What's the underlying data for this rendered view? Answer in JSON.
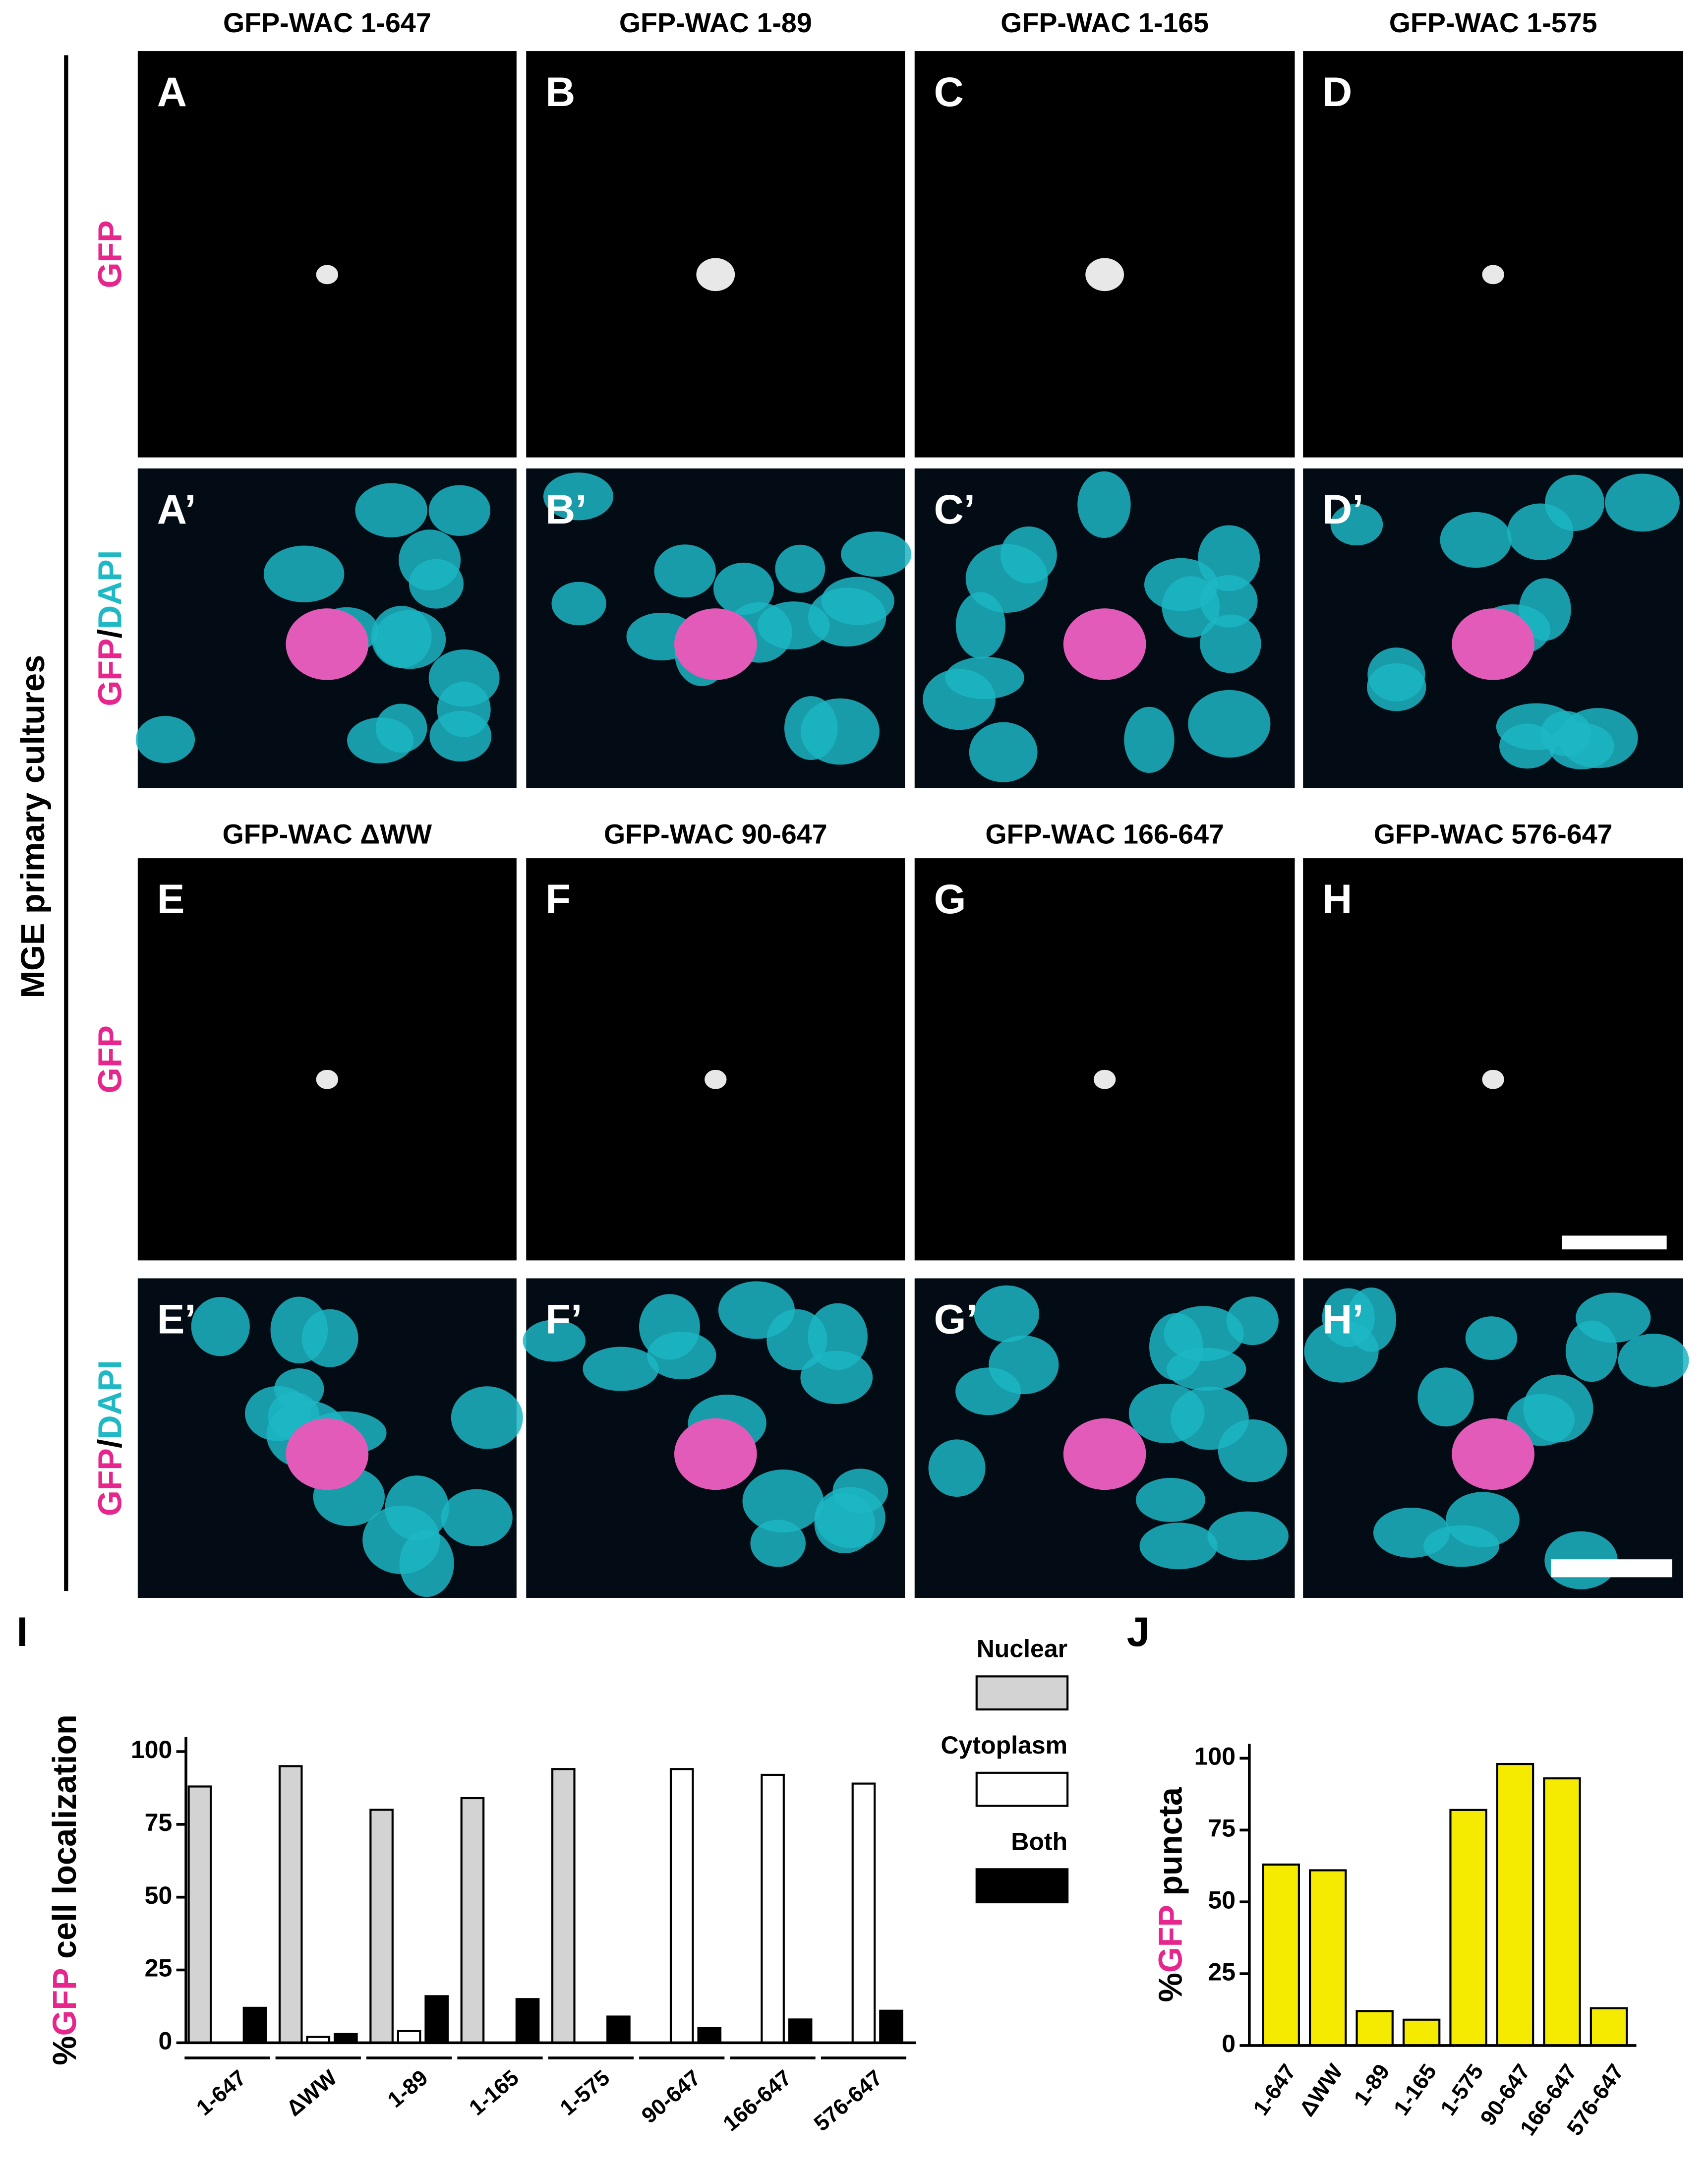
{
  "figure": {
    "side_label": "MGE primary cultures",
    "row_labels": [
      {
        "parts": [
          "GFP"
        ],
        "colors": [
          "#e6268c"
        ]
      },
      {
        "parts": [
          "GFP",
          "/",
          "DAPI"
        ],
        "colors": [
          "#e6268c",
          "#000000",
          "#1fb8c4"
        ]
      }
    ],
    "panels": [
      {
        "title": "GFP-WAC 1-647",
        "letters": [
          "A",
          "A’"
        ]
      },
      {
        "title": "GFP-WAC 1-89",
        "letters": [
          "B",
          "B’"
        ]
      },
      {
        "title": "GFP-WAC 1-165",
        "letters": [
          "C",
          "C’"
        ]
      },
      {
        "title": "GFP-WAC 1-575",
        "letters": [
          "D",
          "D’"
        ]
      },
      {
        "title": "GFP-WAC ΔWW",
        "letters": [
          "E",
          "E’"
        ]
      },
      {
        "title": "GFP-WAC 90-647",
        "letters": [
          "F",
          "F’"
        ]
      },
      {
        "title": "GFP-WAC 166-647",
        "letters": [
          "G",
          "G’"
        ]
      },
      {
        "title": "GFP-WAC 576-647",
        "letters": [
          "H",
          "H’"
        ]
      }
    ]
  },
  "chart_data": [
    {
      "type": "bar",
      "panel_label": "I",
      "ylabel_parts": [
        "%",
        "GFP",
        " cell localization"
      ],
      "ylabel_colors": [
        "#000000",
        "#e6268c",
        "#000000"
      ],
      "categories": [
        "1-647",
        "ΔWW",
        "1-89",
        "1-165",
        "1-575",
        "90-647",
        "166-647",
        "576-647"
      ],
      "series": [
        {
          "name": "Nuclear",
          "color": "#d3d3d3",
          "values": [
            88,
            95,
            80,
            84,
            94,
            0,
            0,
            0
          ]
        },
        {
          "name": "Cytoplasm",
          "color": "#ffffff",
          "values": [
            0,
            2,
            4,
            0,
            0,
            94,
            92,
            89
          ]
        },
        {
          "name": "Both",
          "color": "#000000",
          "values": [
            12,
            3,
            16,
            15,
            9,
            5,
            8,
            11
          ]
        }
      ],
      "ylim": [
        0,
        105
      ],
      "yticks": [
        0,
        25,
        50,
        75,
        100
      ]
    },
    {
      "type": "bar",
      "panel_label": "J",
      "ylabel_parts": [
        "%",
        "GFP",
        " puncta"
      ],
      "ylabel_colors": [
        "#000000",
        "#e6268c",
        "#000000"
      ],
      "categories": [
        "1-647",
        "ΔWW",
        "1-89",
        "1-165",
        "1-575",
        "90-647",
        "166-647",
        "576-647"
      ],
      "values": [
        63,
        61,
        12,
        9,
        82,
        98,
        93,
        13
      ],
      "color": "#f5eb00",
      "ylim": [
        0,
        105
      ],
      "yticks": [
        0,
        25,
        50,
        75,
        100
      ]
    }
  ]
}
